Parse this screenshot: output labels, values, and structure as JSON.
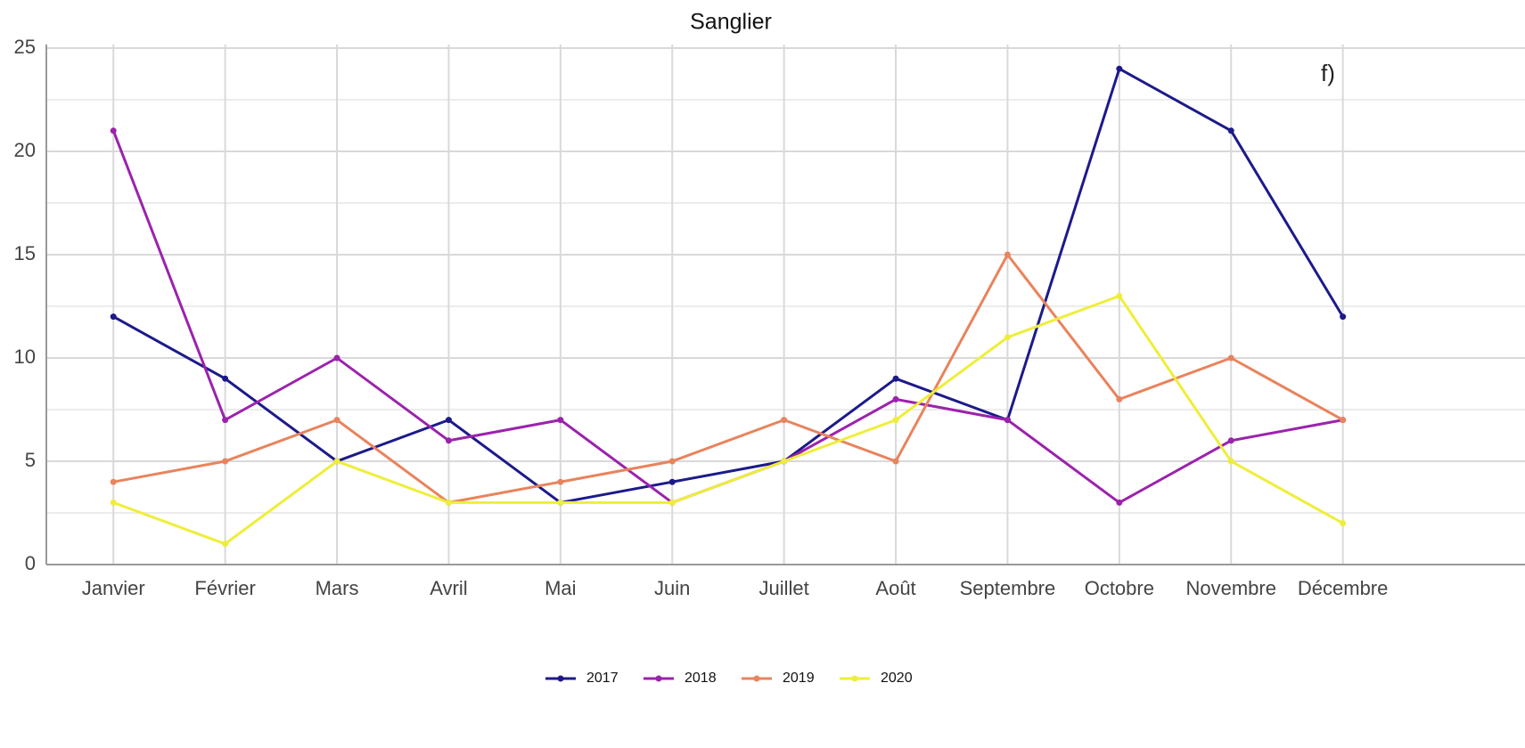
{
  "chart_data": {
    "type": "line",
    "title": "Sanglier",
    "annotation": "f)",
    "categories": [
      "Janvier",
      "Février",
      "Mars",
      "Avril",
      "Mai",
      "Juin",
      "Juillet",
      "Août",
      "Septembre",
      "Octobre",
      "Novembre",
      "Décembre"
    ],
    "series": [
      {
        "name": "2017",
        "color": "#1c1a8a",
        "values": [
          12,
          9,
          5,
          7,
          3,
          4,
          5,
          9,
          7,
          24,
          21,
          12
        ]
      },
      {
        "name": "2018",
        "color": "#9c22ad",
        "values": [
          21,
          7,
          10,
          6,
          7,
          3,
          5,
          8,
          7,
          3,
          6,
          7
        ]
      },
      {
        "name": "2019",
        "color": "#e9835c",
        "values": [
          4,
          5,
          7,
          3,
          4,
          5,
          7,
          5,
          15,
          8,
          10,
          7
        ]
      },
      {
        "name": "2020",
        "color": "#eeee3a",
        "values": [
          3,
          1,
          5,
          3,
          3,
          3,
          5,
          7,
          11,
          13,
          5,
          2
        ]
      }
    ],
    "ylim": [
      0,
      25
    ],
    "yticks": [
      0,
      5,
      10,
      15,
      20,
      25
    ],
    "grid": true,
    "legend": "bottom"
  }
}
